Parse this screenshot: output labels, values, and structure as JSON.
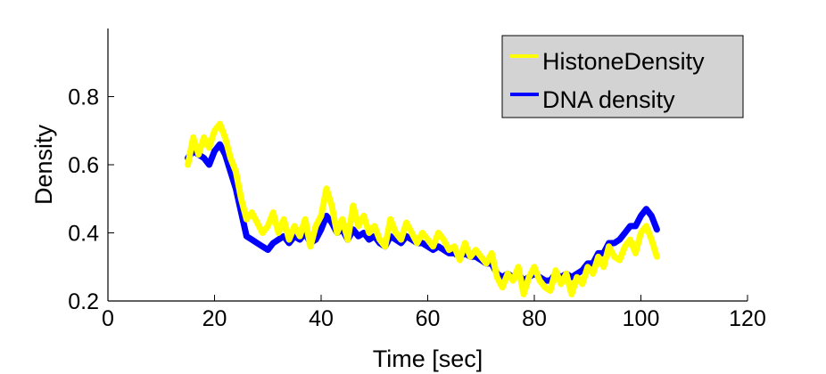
{
  "chart_data": {
    "type": "line",
    "title": "",
    "xlabel": "Time [sec]",
    "ylabel": "Density",
    "xlim": [
      0,
      120
    ],
    "ylim": [
      0.2,
      1.0
    ],
    "xticks": [
      0,
      20,
      40,
      60,
      80,
      100,
      120
    ],
    "yticks": [
      0.2,
      0.4,
      0.6,
      0.8
    ],
    "xtick_labels": [
      "0",
      "20",
      "40",
      "60",
      "80",
      "100",
      "120"
    ],
    "ytick_labels": [
      "0.2",
      "0.4",
      "0.6",
      "0.8"
    ],
    "grid": false,
    "legend_position": "top-right",
    "series": [
      {
        "name": "HistoneDensity",
        "color": "#ffff00",
        "x": [
          15,
          16,
          17,
          18,
          19,
          20,
          21,
          22,
          23,
          24,
          25,
          26,
          27,
          28,
          29,
          30,
          31,
          32,
          33,
          34,
          35,
          36,
          37,
          38,
          39,
          40,
          41,
          42,
          43,
          44,
          45,
          46,
          47,
          48,
          49,
          50,
          51,
          52,
          53,
          54,
          55,
          56,
          57,
          58,
          59,
          60,
          61,
          62,
          63,
          64,
          65,
          66,
          67,
          68,
          69,
          70,
          71,
          72,
          73,
          74,
          75,
          76,
          77,
          78,
          79,
          80,
          81,
          82,
          83,
          84,
          85,
          86,
          87,
          88,
          89,
          90,
          91,
          92,
          93,
          94,
          95,
          96,
          97,
          98,
          99,
          100,
          101,
          102,
          103
        ],
        "y": [
          0.6,
          0.68,
          0.63,
          0.68,
          0.65,
          0.7,
          0.72,
          0.68,
          0.62,
          0.58,
          0.5,
          0.44,
          0.46,
          0.43,
          0.4,
          0.42,
          0.46,
          0.4,
          0.44,
          0.38,
          0.42,
          0.39,
          0.44,
          0.36,
          0.42,
          0.45,
          0.53,
          0.48,
          0.4,
          0.44,
          0.38,
          0.48,
          0.42,
          0.45,
          0.4,
          0.42,
          0.38,
          0.36,
          0.44,
          0.4,
          0.38,
          0.43,
          0.4,
          0.37,
          0.4,
          0.38,
          0.36,
          0.4,
          0.38,
          0.35,
          0.36,
          0.32,
          0.37,
          0.33,
          0.35,
          0.33,
          0.31,
          0.34,
          0.27,
          0.24,
          0.28,
          0.26,
          0.3,
          0.22,
          0.27,
          0.3,
          0.26,
          0.24,
          0.23,
          0.29,
          0.25,
          0.28,
          0.22,
          0.27,
          0.25,
          0.3,
          0.28,
          0.33,
          0.3,
          0.36,
          0.33,
          0.32,
          0.36,
          0.38,
          0.34,
          0.4,
          0.42,
          0.38,
          0.33
        ]
      },
      {
        "name": "DNA density",
        "color": "#0000ff",
        "x": [
          15,
          16,
          17,
          18,
          19,
          20,
          21,
          22,
          23,
          24,
          25,
          26,
          27,
          28,
          29,
          30,
          31,
          32,
          33,
          34,
          35,
          36,
          37,
          38,
          39,
          40,
          41,
          42,
          43,
          44,
          45,
          46,
          47,
          48,
          49,
          50,
          51,
          52,
          53,
          54,
          55,
          56,
          57,
          58,
          59,
          60,
          61,
          62,
          63,
          64,
          65,
          66,
          67,
          68,
          69,
          70,
          71,
          72,
          73,
          74,
          75,
          76,
          77,
          78,
          79,
          80,
          81,
          82,
          83,
          84,
          85,
          86,
          87,
          88,
          89,
          90,
          91,
          92,
          93,
          94,
          95,
          96,
          97,
          98,
          99,
          100,
          101,
          102,
          103
        ],
        "y": [
          0.62,
          0.64,
          0.63,
          0.62,
          0.6,
          0.64,
          0.66,
          0.63,
          0.58,
          0.53,
          0.46,
          0.39,
          0.38,
          0.37,
          0.36,
          0.35,
          0.37,
          0.38,
          0.39,
          0.37,
          0.39,
          0.38,
          0.4,
          0.37,
          0.38,
          0.41,
          0.45,
          0.43,
          0.4,
          0.41,
          0.38,
          0.41,
          0.39,
          0.4,
          0.38,
          0.39,
          0.37,
          0.36,
          0.39,
          0.38,
          0.37,
          0.39,
          0.38,
          0.37,
          0.37,
          0.36,
          0.35,
          0.36,
          0.35,
          0.34,
          0.34,
          0.33,
          0.34,
          0.33,
          0.33,
          0.32,
          0.31,
          0.31,
          0.28,
          0.27,
          0.28,
          0.27,
          0.28,
          0.26,
          0.27,
          0.28,
          0.27,
          0.26,
          0.26,
          0.28,
          0.27,
          0.28,
          0.27,
          0.28,
          0.29,
          0.31,
          0.31,
          0.34,
          0.34,
          0.37,
          0.37,
          0.38,
          0.4,
          0.42,
          0.42,
          0.45,
          0.47,
          0.45,
          0.41
        ]
      }
    ]
  }
}
